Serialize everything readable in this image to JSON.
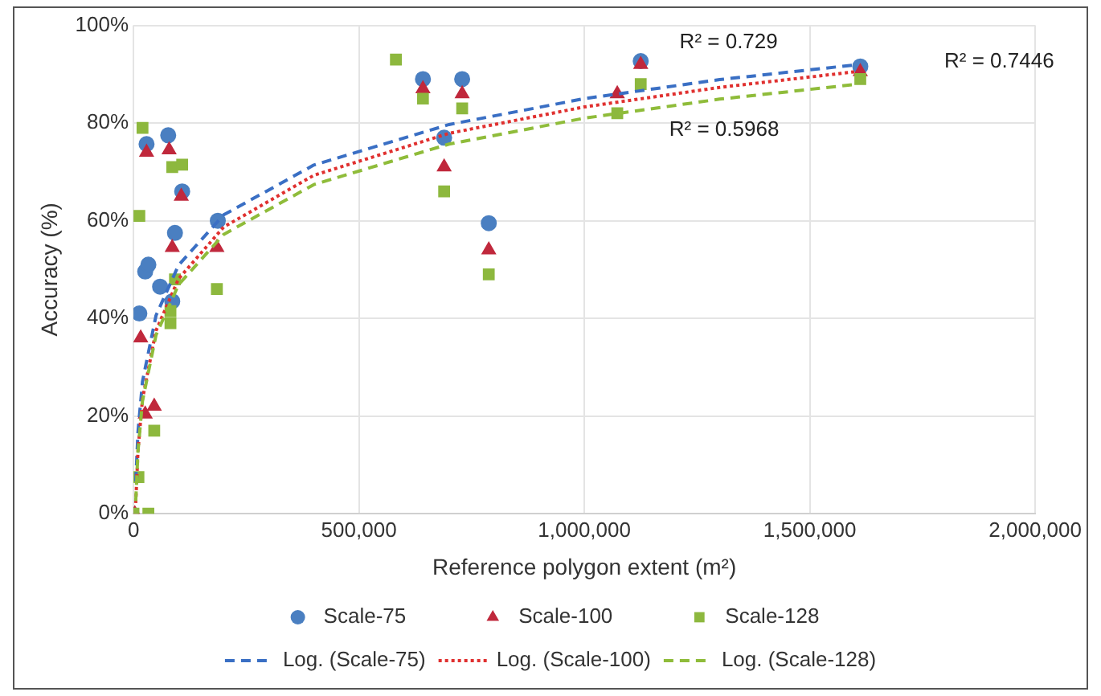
{
  "chart_data": {
    "type": "scatter",
    "xlabel": "Reference polygon extent (m²)",
    "ylabel": "Accuracy (%)",
    "xlim": [
      0,
      2000000
    ],
    "xticks": [
      {
        "value": 0,
        "label": "0"
      },
      {
        "value": 500000,
        "label": "500,000"
      },
      {
        "value": 1000000,
        "label": "1,000,000"
      },
      {
        "value": 1500000,
        "label": "1,500,000"
      },
      {
        "value": 2000000,
        "label": "2,000,000"
      }
    ],
    "ylim": [
      0,
      100
    ],
    "yticks": [
      {
        "value": 0,
        "label": "0%"
      },
      {
        "value": 20,
        "label": "20%"
      },
      {
        "value": 40,
        "label": "40%"
      },
      {
        "value": 60,
        "label": "60%"
      },
      {
        "value": 80,
        "label": "80%"
      },
      {
        "value": 100,
        "label": "100%"
      }
    ],
    "grid": true,
    "legend": "bottom",
    "series": [
      {
        "name": "Scale-75",
        "marker": "circle",
        "color": "#4a7fc1",
        "x": [
          13000,
          26000,
          33000,
          59000,
          86000,
          29000,
          77000,
          92000,
          108000,
          187000,
          642000,
          689000,
          729000,
          788000,
          1125000,
          1612000
        ],
        "values": [
          41,
          49.6,
          51,
          46.5,
          43.5,
          75.7,
          77.5,
          57.5,
          66,
          60,
          89,
          77,
          89,
          59.5,
          92.7,
          91.6
        ]
      },
      {
        "name": "Scale-100",
        "marker": "triangle",
        "color": "#c0283c",
        "x": [
          3000,
          16000,
          26000,
          46000,
          29000,
          79000,
          106000,
          86000,
          185000,
          642000,
          689000,
          729000,
          788000,
          1073000,
          1125000,
          1612000
        ],
        "values": [
          0,
          36,
          20.4,
          22,
          74,
          74.5,
          65,
          54.5,
          54.5,
          87,
          71,
          86,
          54,
          86,
          92,
          90.5
        ]
      },
      {
        "name": "Scale-128",
        "marker": "square",
        "color": "#8db83e",
        "x": [
          20000,
          13000,
          86000,
          108000,
          92000,
          82000,
          82000,
          46000,
          11000,
          0,
          33000,
          185000,
          582000,
          642000,
          689000,
          729000,
          788000,
          1073000,
          1125000,
          1612000
        ],
        "values": [
          79,
          61,
          71,
          71.5,
          48,
          41.5,
          39,
          17,
          7.5,
          0,
          0,
          46,
          93,
          85,
          66,
          83,
          49,
          82,
          88,
          89
        ]
      },
      {
        "name": "Log. (Scale-75)",
        "type": "line",
        "line_style": "dashed",
        "color": "#3a6fc4",
        "x": [
          5000,
          10000,
          20000,
          50000,
          100000,
          200000,
          400000,
          700000,
          1000000,
          1300000,
          1600000
        ],
        "values": [
          6.6,
          16.8,
          27.1,
          40.6,
          50.9,
          61.2,
          71.4,
          79.7,
          85.0,
          88.9,
          91.9
        ]
      },
      {
        "name": "Log. (Scale-100)",
        "type": "line",
        "line_style": "dotted",
        "color": "#e0302f",
        "x": [
          5000,
          10000,
          20000,
          50000,
          100000,
          200000,
          400000,
          700000,
          1000000,
          1300000,
          1600000
        ],
        "values": [
          2.2,
          12.9,
          23.5,
          37.5,
          48.1,
          58.7,
          69.3,
          77.9,
          83.3,
          87.3,
          90.5
        ]
      },
      {
        "name": "Log. (Scale-128)",
        "type": "line",
        "line_style": "dashed",
        "color": "#8fbc3a",
        "x": [
          5000,
          10000,
          20000,
          50000,
          100000,
          200000,
          400000,
          700000,
          1000000,
          1300000,
          1600000
        ],
        "values": [
          2.6,
          12.8,
          23.1,
          36.6,
          46.9,
          57.2,
          67.4,
          75.7,
          81.0,
          84.9,
          87.9
        ]
      }
    ],
    "annotations": [
      "R² = 0.729",
      "R² = 0.7446",
      "R² = 0.5968"
    ]
  }
}
